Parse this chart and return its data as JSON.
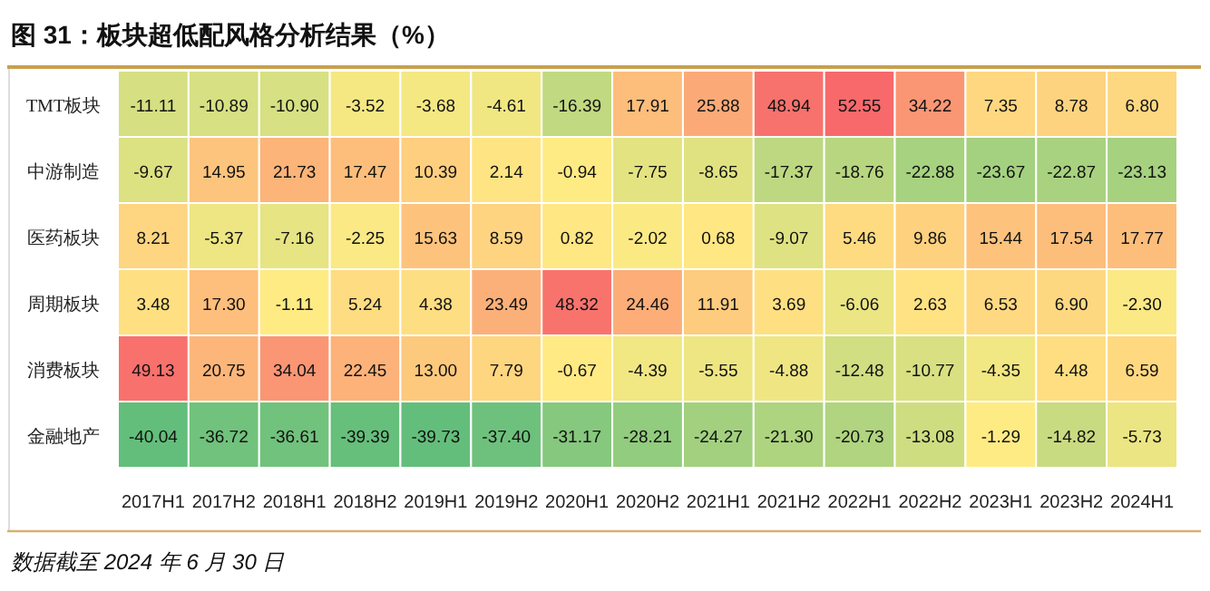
{
  "chart_data": {
    "type": "heatmap",
    "title": "图 31：板块超低配风格分析结果（%）",
    "categories": [
      "2017H1",
      "2017H2",
      "2018H1",
      "2018H2",
      "2019H1",
      "2019H2",
      "2020H1",
      "2020H2",
      "2021H1",
      "2021H2",
      "2022H1",
      "2022H2",
      "2023H1",
      "2023H2",
      "2024H1"
    ],
    "y_categories": [
      "TMT板块",
      "中游制造",
      "医药板块",
      "周期板块",
      "消费板块",
      "金融地产"
    ],
    "cells": [
      [
        -11.11,
        -10.89,
        -10.9,
        -3.52,
        -3.68,
        -4.61,
        -16.39,
        17.91,
        25.88,
        48.94,
        52.55,
        34.22,
        7.35,
        8.78,
        6.8
      ],
      [
        -9.67,
        14.95,
        21.73,
        17.47,
        10.39,
        2.14,
        -0.94,
        -7.75,
        -8.65,
        -17.37,
        -18.76,
        -22.88,
        -23.67,
        -22.87,
        -23.13
      ],
      [
        8.21,
        -5.37,
        -7.16,
        -2.25,
        15.63,
        8.59,
        0.82,
        -2.02,
        0.68,
        -9.07,
        5.46,
        9.86,
        15.44,
        17.54,
        17.77
      ],
      [
        3.48,
        17.3,
        -1.11,
        5.24,
        4.38,
        23.49,
        48.32,
        24.46,
        11.91,
        3.69,
        -6.06,
        2.63,
        6.53,
        6.9,
        -2.3
      ],
      [
        49.13,
        20.75,
        34.04,
        22.45,
        13.0,
        7.79,
        -0.67,
        -4.39,
        -5.55,
        -4.88,
        -12.48,
        -10.77,
        -4.35,
        4.48,
        6.59
      ],
      [
        -40.04,
        -36.72,
        -36.61,
        -39.39,
        -39.73,
        -37.4,
        -31.17,
        -28.21,
        -24.27,
        -21.3,
        -20.73,
        -13.08,
        -1.29,
        -14.82,
        -5.73
      ]
    ],
    "cell_labels": [
      [
        "-11.11",
        "-10.89",
        "-10.90",
        "-3.52",
        "-3.68",
        "-4.61",
        "-16.39",
        "17.91",
        "25.88",
        "48.94",
        "52.55",
        "34.22",
        "7.35",
        "8.78",
        "6.80"
      ],
      [
        "-9.67",
        "14.95",
        "21.73",
        "17.47",
        "10.39",
        "2.14",
        "-0.94",
        "-7.75",
        "-8.65",
        "-17.37",
        "-18.76",
        "-22.88",
        "-23.67",
        "-22.87",
        "-23.13"
      ],
      [
        "8.21",
        "-5.37",
        "-7.16",
        "-2.25",
        "15.63",
        "8.59",
        "0.82",
        "-2.02",
        "0.68",
        "-9.07",
        "5.46",
        "9.86",
        "15.44",
        "17.54",
        "17.77"
      ],
      [
        "3.48",
        "17.30",
        "-1.11",
        "5.24",
        "4.38",
        "23.49",
        "48.32",
        "24.46",
        "11.91",
        "3.69",
        "-6.06",
        "2.63",
        "6.53",
        "6.90",
        "-2.30"
      ],
      [
        "49.13",
        "20.75",
        "34.04",
        "22.45",
        "13.00",
        "7.79",
        "-0.67",
        "-4.39",
        "-5.55",
        "-4.88",
        "-12.48",
        "-10.77",
        "-4.35",
        "4.48",
        "6.59"
      ],
      [
        "-40.04",
        "-36.72",
        "-36.61",
        "-39.39",
        "-39.73",
        "-37.40",
        "-31.17",
        "-28.21",
        "-24.27",
        "-21.30",
        "-20.73",
        "-13.08",
        "-1.29",
        "-14.82",
        "-5.73"
      ]
    ],
    "annotations": [
      "数据截至 2024 年 6 月 30 日"
    ]
  }
}
